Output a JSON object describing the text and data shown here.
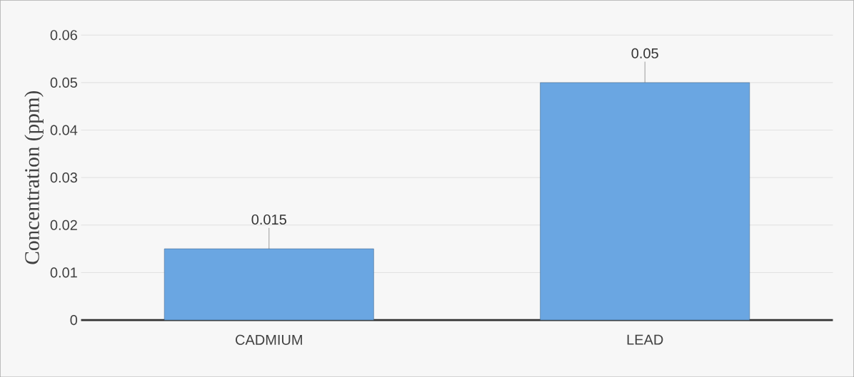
{
  "chart_data": {
    "type": "bar",
    "ylabel": "Concentration (ppm)",
    "categories": [
      "CADMIUM",
      "LEAD"
    ],
    "values": [
      0.015,
      0.05
    ],
    "color": "#6aa6e2",
    "ylim": [
      0,
      0.06
    ],
    "yticks": [
      0,
      0.01,
      0.02,
      0.03,
      0.04,
      0.05,
      0.06
    ],
    "value_labels": [
      "0.015",
      "0.05"
    ],
    "grid": "y"
  }
}
